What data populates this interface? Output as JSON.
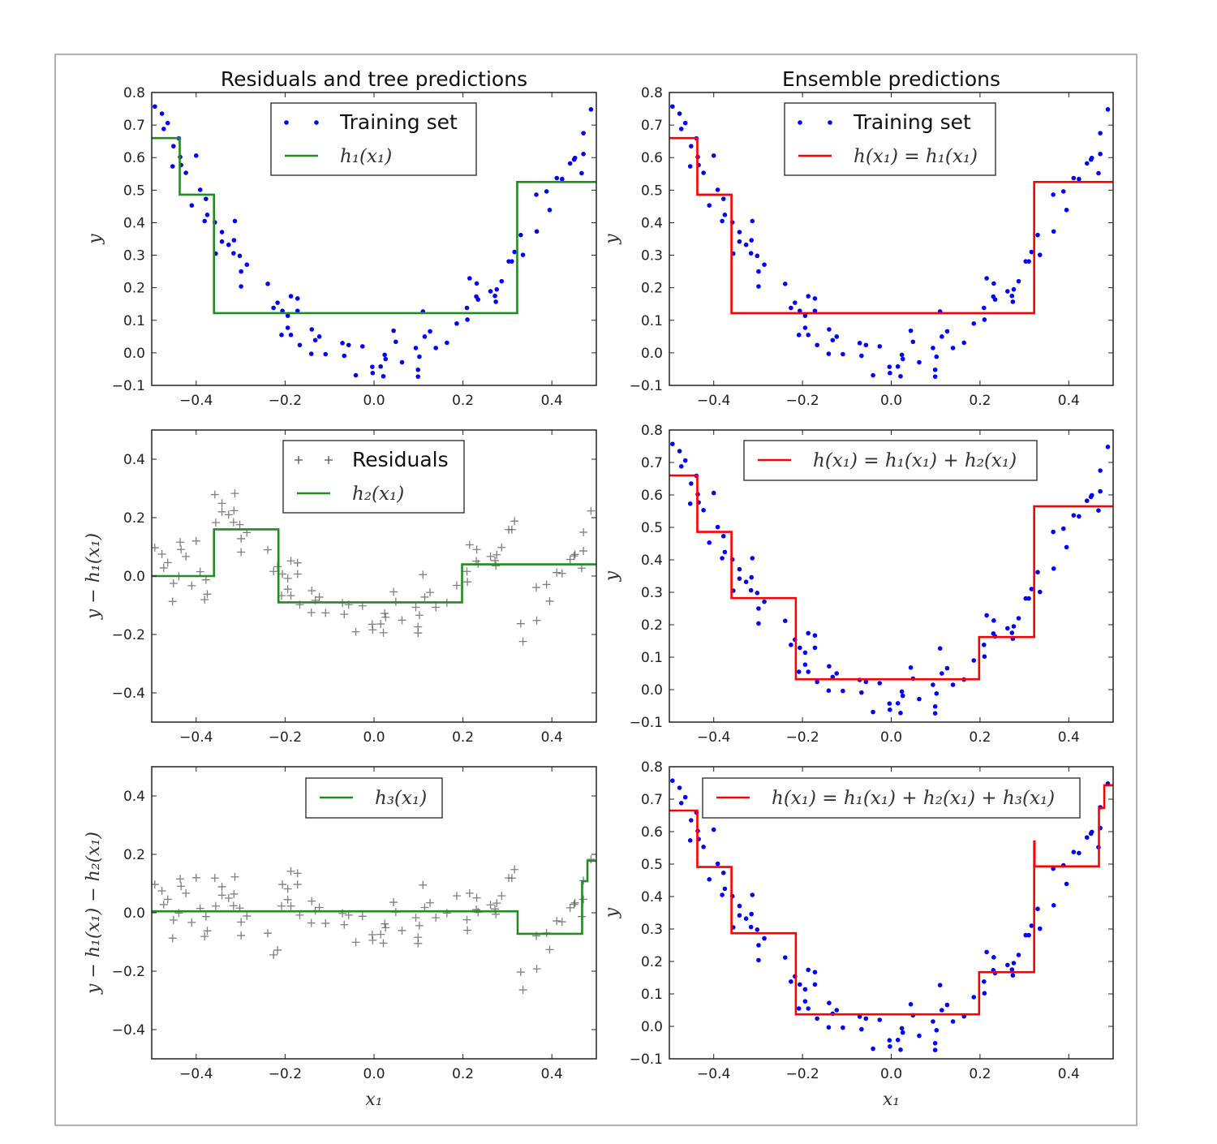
{
  "chart_data": {
    "type": "scatter",
    "xlim": [
      -0.5,
      0.5
    ],
    "x_ticks": [
      "−0.4",
      "−0.2",
      "0.0",
      "0.2",
      "0.4"
    ],
    "x_tick_values": [
      -0.4,
      -0.2,
      0.0,
      0.2,
      0.4
    ],
    "xlabel": "x₁",
    "colors": {
      "points": "#0000ff",
      "tree": "#228b22",
      "ensemble": "#ff0000",
      "residuals": "#555555"
    },
    "training_set": {
      "x": [
        -0.493,
        -0.477,
        -0.473,
        -0.464,
        -0.439,
        -0.451,
        -0.436,
        -0.4,
        -0.453,
        -0.434,
        -0.423,
        -0.391,
        -0.378,
        -0.41,
        -0.375,
        -0.381,
        -0.358,
        -0.342,
        -0.313,
        -0.342,
        -0.327,
        -0.315,
        -0.356,
        -0.316,
        -0.302,
        -0.286,
        -0.299,
        -0.299,
        -0.239,
        -0.226,
        -0.217,
        -0.206,
        -0.187,
        -0.172,
        -0.172,
        -0.194,
        -0.194,
        -0.208,
        -0.187,
        -0.167,
        -0.14,
        -0.132,
        -0.123,
        -0.141,
        -0.109,
        -0.071,
        -0.057,
        -0.067,
        -0.026,
        -0.041,
        -0.004,
        -0.003,
        0.015,
        0.021,
        0.024,
        0.026,
        0.063,
        0.044,
        0.049,
        0.094,
        0.102,
        0.099,
        0.099,
        0.11,
        0.114,
        0.126,
        0.139,
        0.164,
        0.186,
        0.21,
        0.209,
        0.215,
        0.231,
        0.23,
        0.234,
        0.262,
        0.272,
        0.276,
        0.274,
        0.287,
        0.303,
        0.31,
        0.316,
        0.335,
        0.33,
        0.366,
        0.365,
        0.388,
        0.395,
        0.411,
        0.423,
        0.441,
        0.45,
        0.452,
        0.467,
        0.471,
        0.471,
        0.488
      ],
      "y": [
        0.757,
        0.735,
        0.688,
        0.706,
        0.659,
        0.635,
        0.602,
        0.606,
        0.573,
        0.577,
        0.553,
        0.501,
        0.473,
        0.453,
        0.424,
        0.405,
        0.401,
        0.371,
        0.405,
        0.342,
        0.332,
        0.346,
        0.305,
        0.306,
        0.298,
        0.271,
        0.25,
        0.204,
        0.212,
        0.138,
        0.154,
        0.129,
        0.174,
        0.167,
        0.129,
        0.114,
        0.077,
        0.055,
        0.055,
        0.024,
        0.072,
        0.039,
        0.05,
        -0.003,
        -0.004,
        0.03,
        0.024,
        -0.009,
        0.02,
        -0.069,
        -0.043,
        -0.062,
        -0.042,
        -0.072,
        -0.006,
        -0.019,
        -0.029,
        0.068,
        0.034,
        0.015,
        -0.012,
        -0.052,
        -0.073,
        0.127,
        0.05,
        0.066,
        0.015,
        0.031,
        0.09,
        0.102,
        0.138,
        0.229,
        0.213,
        0.173,
        0.164,
        0.189,
        0.175,
        0.195,
        0.157,
        0.22,
        0.281,
        0.281,
        0.31,
        0.301,
        0.362,
        0.373,
        0.486,
        0.496,
        0.439,
        0.537,
        0.534,
        0.582,
        0.594,
        0.599,
        0.552,
        0.611,
        0.675,
        0.748
      ]
    },
    "trees": {
      "h1": {
        "thresholds": [
          -0.437,
          -0.36,
          0.322
        ],
        "values": [
          0.66,
          0.486,
          0.122,
          0.525
        ]
      },
      "h2": {
        "thresholds": [
          -0.36,
          -0.215,
          0.198
        ],
        "values": [
          0.0,
          0.16,
          -0.09,
          0.04
        ]
      },
      "h3": {
        "thresholds": [
          0.323,
          0.468,
          0.48
        ],
        "values": [
          0.005,
          -0.072,
          0.108,
          0.178
        ]
      }
    },
    "panels": [
      {
        "id": "residuals-tree-1",
        "title": "Residuals and tree predictions",
        "ylabel": "y",
        "ylim": [
          -0.1,
          0.8
        ],
        "yticks": [
          "−0.1",
          "0.0",
          "0.1",
          "0.2",
          "0.3",
          "0.4",
          "0.5",
          "0.6",
          "0.7",
          "0.8"
        ],
        "ytick_values": [
          -0.1,
          0,
          0.1,
          0.2,
          0.3,
          0.4,
          0.5,
          0.6,
          0.7,
          0.8
        ],
        "points": "training",
        "trees": [
          "h1"
        ],
        "line": "tree",
        "legend": [
          {
            "kind": "points",
            "label": "Training set"
          },
          {
            "kind": "line",
            "label": "h₁(x₁)"
          }
        ]
      },
      {
        "id": "ensemble-1",
        "title": "Ensemble predictions",
        "ylabel": "y",
        "ylim": [
          -0.1,
          0.8
        ],
        "yticks": [
          "−0.1",
          "0.0",
          "0.1",
          "0.2",
          "0.3",
          "0.4",
          "0.5",
          "0.6",
          "0.7",
          "0.8"
        ],
        "ytick_values": [
          -0.1,
          0,
          0.1,
          0.2,
          0.3,
          0.4,
          0.5,
          0.6,
          0.7,
          0.8
        ],
        "points": "training",
        "trees": [
          "h1"
        ],
        "line": "ensemble",
        "legend": [
          {
            "kind": "points",
            "label": "Training set"
          },
          {
            "kind": "line",
            "label": "h(x₁) = h₁(x₁)"
          }
        ]
      },
      {
        "id": "residuals-tree-2",
        "title": "",
        "ylabel": "y − h₁(x₁)",
        "ylim": [
          -0.5,
          0.5
        ],
        "yticks": [
          "−0.4",
          "−0.2",
          "0.0",
          "0.2",
          "0.4"
        ],
        "ytick_values": [
          -0.4,
          -0.2,
          0,
          0.2,
          0.4
        ],
        "points": "residuals1",
        "trees": [
          "h2"
        ],
        "line": "tree",
        "legend": [
          {
            "kind": "plus",
            "label": "Residuals"
          },
          {
            "kind": "line",
            "label": "h₂(x₁)"
          }
        ]
      },
      {
        "id": "ensemble-2",
        "title": "",
        "ylabel": "y",
        "ylim": [
          -0.1,
          0.8
        ],
        "yticks": [
          "−0.1",
          "0.0",
          "0.1",
          "0.2",
          "0.3",
          "0.4",
          "0.5",
          "0.6",
          "0.7",
          "0.8"
        ],
        "ytick_values": [
          -0.1,
          0,
          0.1,
          0.2,
          0.3,
          0.4,
          0.5,
          0.6,
          0.7,
          0.8
        ],
        "points": "training",
        "trees": [
          "h1",
          "h2"
        ],
        "line": "ensemble",
        "legend": [
          {
            "kind": "line",
            "label": "h(x₁) = h₁(x₁) + h₂(x₁)"
          }
        ]
      },
      {
        "id": "residuals-tree-3",
        "title": "",
        "ylabel": "y − h₁(x₁) − h₂(x₁)",
        "xlabel": "x₁",
        "ylim": [
          -0.5,
          0.5
        ],
        "yticks": [
          "−0.4",
          "−0.2",
          "0.0",
          "0.2",
          "0.4"
        ],
        "ytick_values": [
          -0.4,
          -0.2,
          0,
          0.2,
          0.4
        ],
        "points": "residuals2",
        "trees": [
          "h3"
        ],
        "line": "tree",
        "legend": [
          {
            "kind": "line",
            "label": "h₃(x₁)"
          }
        ]
      },
      {
        "id": "ensemble-3",
        "title": "",
        "ylabel": "y",
        "xlabel": "x₁",
        "ylim": [
          -0.1,
          0.8
        ],
        "yticks": [
          "−0.1",
          "0.0",
          "0.1",
          "0.2",
          "0.3",
          "0.4",
          "0.5",
          "0.6",
          "0.7",
          "0.8"
        ],
        "ytick_values": [
          -0.1,
          0,
          0.1,
          0.2,
          0.3,
          0.4,
          0.5,
          0.6,
          0.7,
          0.8
        ],
        "points": "training",
        "trees": [
          "h1",
          "h2",
          "h3"
        ],
        "line": "ensemble",
        "legend": [
          {
            "kind": "line",
            "label": "h(x₁) = h₁(x₁) + h₂(x₁) + h₃(x₁)"
          }
        ]
      }
    ]
  }
}
